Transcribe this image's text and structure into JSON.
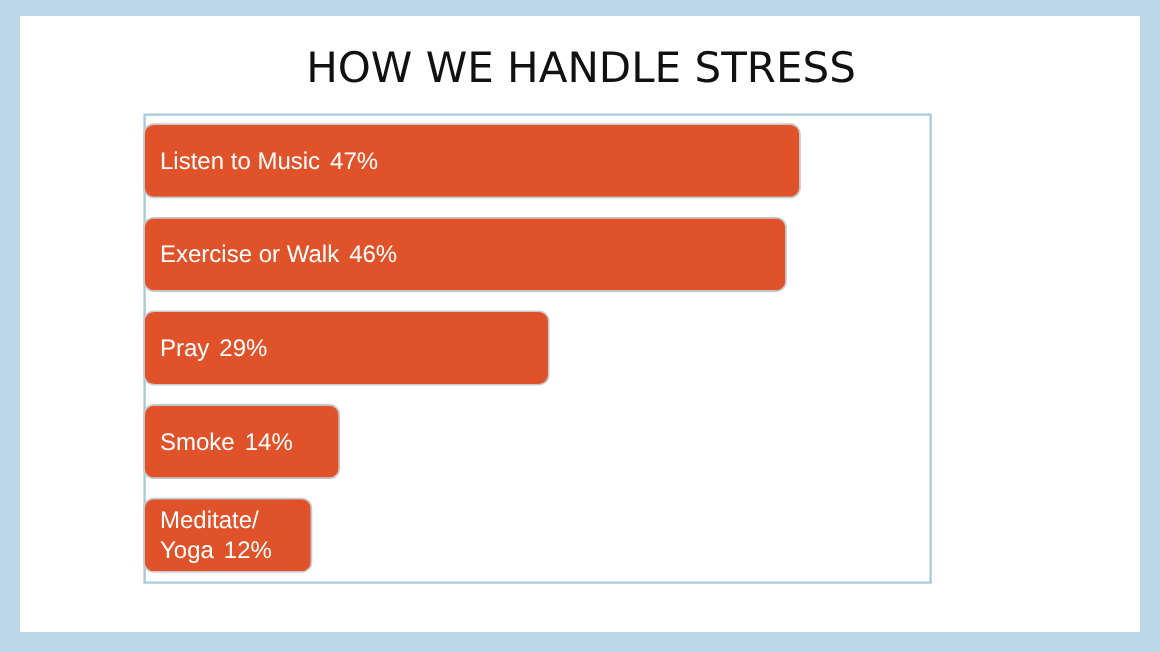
{
  "chart_data": {
    "type": "bar",
    "orientation": "horizontal",
    "title": "HOW WE HANDLE STRESS",
    "categories": [
      "Listen to Music",
      "Exercise or Walk",
      "Pray",
      "Smoke",
      "Meditate/ Yoga"
    ],
    "values": [
      47,
      46,
      29,
      14,
      12
    ],
    "value_labels": [
      "47%",
      "46%",
      "29%",
      "14%",
      "12%"
    ],
    "color": "#e0532a"
  }
}
